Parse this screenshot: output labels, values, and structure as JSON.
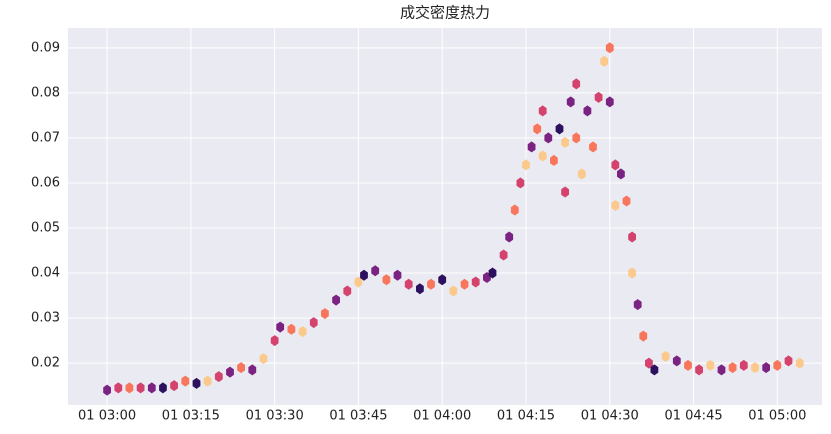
{
  "chart_data": {
    "type": "hexbin",
    "title": "成交密度热力",
    "cmap": "magma",
    "grid": true,
    "xlim": [
      "01 02:53",
      "01 05:08"
    ],
    "ylim": [
      0.0107,
      0.0944
    ],
    "xticks": [
      "01 03:00",
      "01 03:15",
      "01 03:30",
      "01 03:45",
      "01 04:00",
      "01 04:15",
      "01 04:30",
      "01 04:45",
      "01 05:00"
    ],
    "yticks": [
      0.02,
      0.03,
      0.04,
      0.05,
      0.06,
      0.07,
      0.08,
      0.09
    ],
    "x": [
      "01 03:00",
      "01 03:02",
      "01 03:04",
      "01 03:06",
      "01 03:08",
      "01 03:10",
      "01 03:12",
      "01 03:14",
      "01 03:16",
      "01 03:18",
      "01 03:20",
      "01 03:22",
      "01 03:24",
      "01 03:26",
      "01 03:28",
      "01 03:30",
      "01 03:31",
      "01 03:33",
      "01 03:35",
      "01 03:37",
      "01 03:39",
      "01 03:41",
      "01 03:43",
      "01 03:45",
      "01 03:46",
      "01 03:48",
      "01 03:50",
      "01 03:52",
      "01 03:54",
      "01 03:56",
      "01 03:58",
      "01 04:00",
      "01 04:02",
      "01 04:04",
      "01 04:06",
      "01 04:08",
      "01 04:09",
      "01 04:11",
      "01 04:12",
      "01 04:13",
      "01 04:14",
      "01 04:15",
      "01 04:16",
      "01 04:17",
      "01 04:18",
      "01 04:18",
      "01 04:19",
      "01 04:20",
      "01 04:21",
      "01 04:22",
      "01 04:22",
      "01 04:23",
      "01 04:24",
      "01 04:24",
      "01 04:25",
      "01 04:26",
      "01 04:27",
      "01 04:28",
      "01 04:29",
      "01 04:30",
      "01 04:30",
      "01 04:31",
      "01 04:31",
      "01 04:32",
      "01 04:33",
      "01 04:34",
      "01 04:34",
      "01 04:35",
      "01 04:36",
      "01 04:37",
      "01 04:38",
      "01 04:40",
      "01 04:42",
      "01 04:44",
      "01 04:46",
      "01 04:48",
      "01 04:50",
      "01 04:52",
      "01 04:54",
      "01 04:56",
      "01 04:58",
      "01 05:00",
      "01 05:02",
      "01 05:04"
    ],
    "y": [
      0.014,
      0.0145,
      0.0145,
      0.0145,
      0.0145,
      0.0145,
      0.015,
      0.016,
      0.0155,
      0.016,
      0.017,
      0.018,
      0.019,
      0.0185,
      0.021,
      0.025,
      0.028,
      0.0275,
      0.027,
      0.029,
      0.031,
      0.034,
      0.036,
      0.038,
      0.0395,
      0.0405,
      0.0385,
      0.0395,
      0.0375,
      0.0365,
      0.0375,
      0.0385,
      0.036,
      0.0375,
      0.038,
      0.039,
      0.04,
      0.044,
      0.048,
      0.054,
      0.06,
      0.064,
      0.068,
      0.072,
      0.076,
      0.066,
      0.07,
      0.065,
      0.072,
      0.058,
      0.069,
      0.078,
      0.082,
      0.07,
      0.062,
      0.076,
      0.068,
      0.079,
      0.087,
      0.09,
      0.078,
      0.064,
      0.055,
      0.062,
      0.056,
      0.048,
      0.04,
      0.033,
      0.026,
      0.02,
      0.0185,
      0.0215,
      0.0205,
      0.0195,
      0.0185,
      0.0195,
      0.0185,
      0.019,
      0.0195,
      0.019,
      0.019,
      0.0195,
      0.0205,
      0.02
    ],
    "counts": [
      2,
      3,
      4,
      3,
      2,
      1,
      3,
      4,
      1,
      5,
      3,
      2,
      4,
      2,
      5,
      3,
      2,
      4,
      5,
      3,
      4,
      2,
      3,
      5,
      1,
      2,
      4,
      2,
      3,
      1,
      4,
      1,
      5,
      4,
      3,
      2,
      1,
      3,
      2,
      4,
      3,
      5,
      2,
      4,
      3,
      5,
      2,
      4,
      1,
      3,
      5,
      2,
      3,
      4,
      5,
      2,
      4,
      3,
      5,
      4,
      2,
      3,
      5,
      2,
      4,
      3,
      5,
      2,
      4,
      3,
      1,
      5,
      2,
      4,
      3,
      5,
      2,
      4,
      3,
      5,
      2,
      4,
      3,
      5
    ]
  }
}
